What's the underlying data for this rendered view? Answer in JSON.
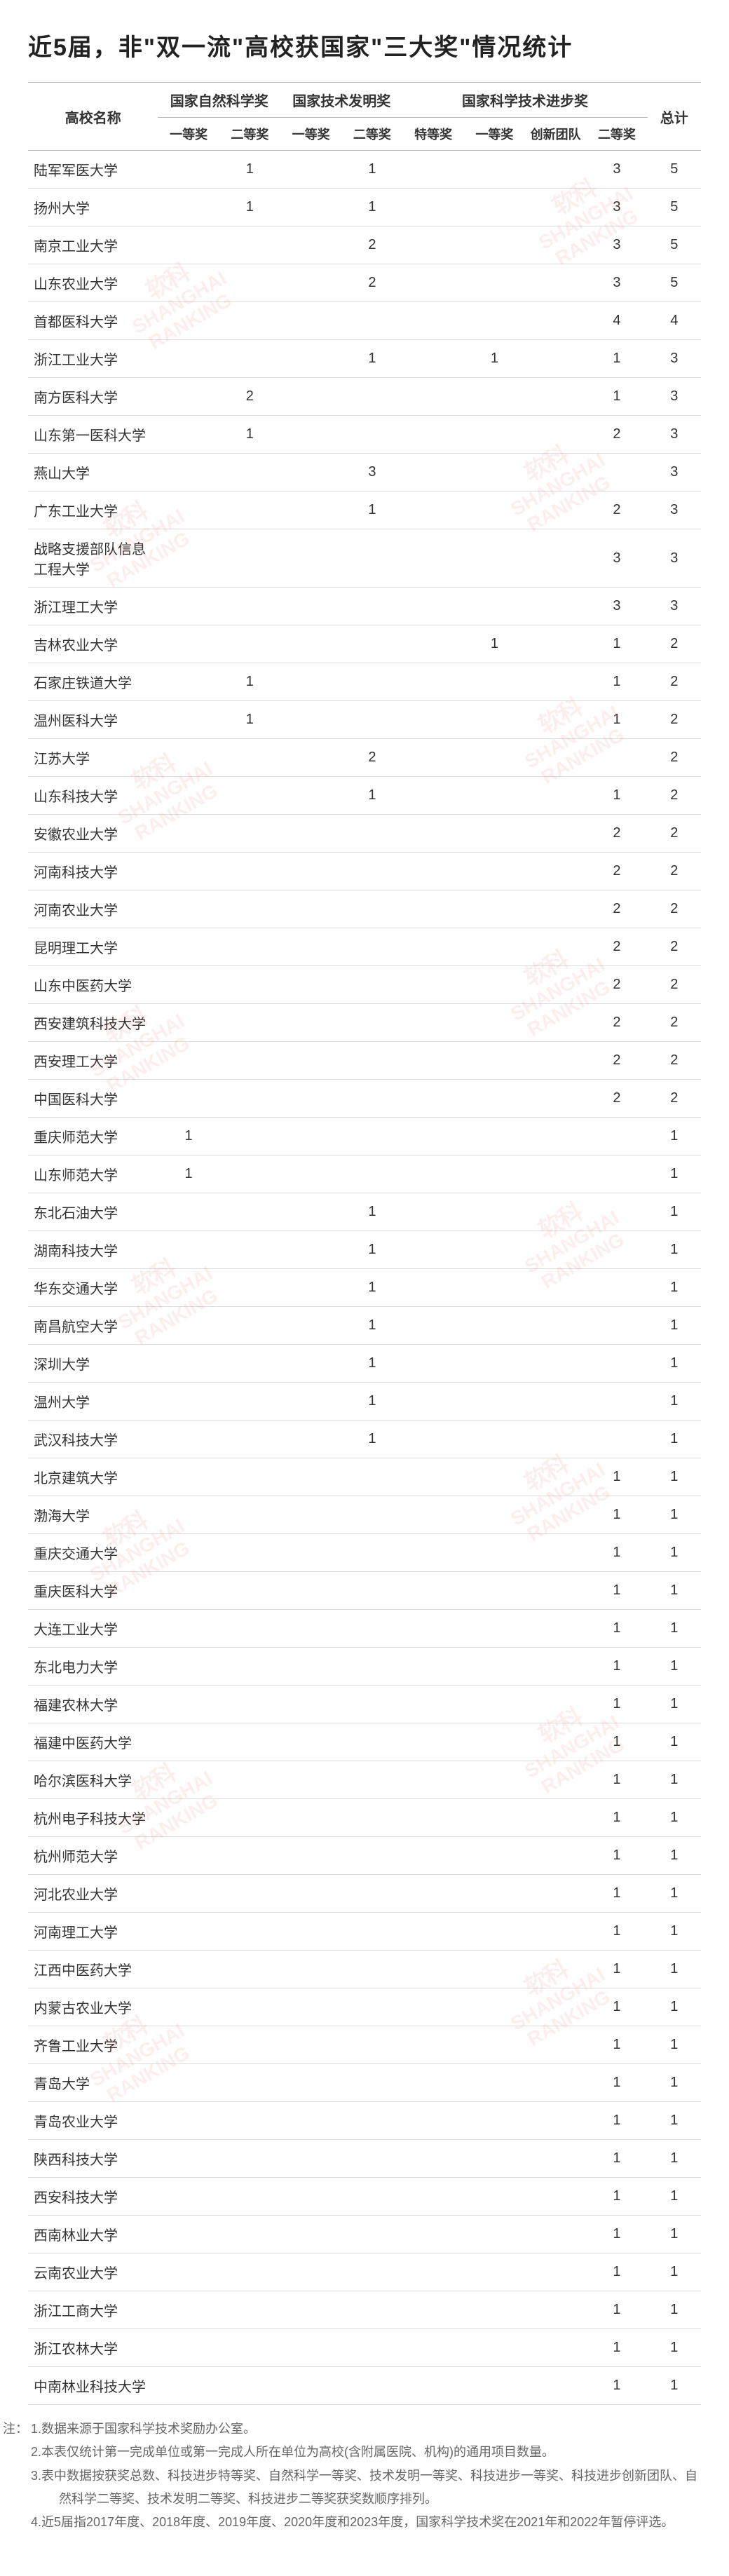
{
  "title": "近5届，非\"双一流\"高校获国家\"三大奖\"情况统计",
  "headers": {
    "university": "高校名称",
    "group1": "国家自然科学奖",
    "group2": "国家技术发明奖",
    "group3": "国家科学技术进步奖",
    "total": "总计",
    "sub": {
      "g1_1": "一等奖",
      "g1_2": "二等奖",
      "g2_1": "一等奖",
      "g2_2": "二等奖",
      "g3_s": "特等奖",
      "g3_1": "一等奖",
      "g3_t": "创新团队",
      "g3_2": "二等奖"
    }
  },
  "style": {
    "header_bg": "#ffffff",
    "border_color": "#bbbbbb",
    "row_border_color": "#dddddd",
    "text_color": "#333333",
    "title_color": "#222222",
    "footnote_color": "#666666",
    "watermark_color": "#ef3a3a",
    "watermark_opacity": 0.08,
    "font_family": "Microsoft YaHei"
  },
  "rows": [
    {
      "uni": "陆军军医大学",
      "c": [
        "",
        "1",
        "",
        "1",
        "",
        "",
        "",
        "3",
        "5"
      ]
    },
    {
      "uni": "扬州大学",
      "c": [
        "",
        "1",
        "",
        "1",
        "",
        "",
        "",
        "3",
        "5"
      ]
    },
    {
      "uni": "南京工业大学",
      "c": [
        "",
        "",
        "",
        "2",
        "",
        "",
        "",
        "3",
        "5"
      ]
    },
    {
      "uni": "山东农业大学",
      "c": [
        "",
        "",
        "",
        "2",
        "",
        "",
        "",
        "3",
        "5"
      ]
    },
    {
      "uni": "首都医科大学",
      "c": [
        "",
        "",
        "",
        "",
        "",
        "",
        "",
        "4",
        "4"
      ]
    },
    {
      "uni": "浙江工业大学",
      "c": [
        "",
        "",
        "",
        "1",
        "",
        "1",
        "",
        "1",
        "3"
      ]
    },
    {
      "uni": "南方医科大学",
      "c": [
        "",
        "2",
        "",
        "",
        "",
        "",
        "",
        "1",
        "3"
      ]
    },
    {
      "uni": "山东第一医科大学",
      "c": [
        "",
        "1",
        "",
        "",
        "",
        "",
        "",
        "2",
        "3"
      ]
    },
    {
      "uni": "燕山大学",
      "c": [
        "",
        "",
        "",
        "3",
        "",
        "",
        "",
        "",
        "3"
      ]
    },
    {
      "uni": "广东工业大学",
      "c": [
        "",
        "",
        "",
        "1",
        "",
        "",
        "",
        "2",
        "3"
      ]
    },
    {
      "uni": "战略支援部队信息工程大学",
      "c": [
        "",
        "",
        "",
        "",
        "",
        "",
        "",
        "3",
        "3"
      ]
    },
    {
      "uni": "浙江理工大学",
      "c": [
        "",
        "",
        "",
        "",
        "",
        "",
        "",
        "3",
        "3"
      ]
    },
    {
      "uni": "吉林农业大学",
      "c": [
        "",
        "",
        "",
        "",
        "",
        "1",
        "",
        "1",
        "2"
      ]
    },
    {
      "uni": "石家庄铁道大学",
      "c": [
        "",
        "1",
        "",
        "",
        "",
        "",
        "",
        "1",
        "2"
      ]
    },
    {
      "uni": "温州医科大学",
      "c": [
        "",
        "1",
        "",
        "",
        "",
        "",
        "",
        "1",
        "2"
      ]
    },
    {
      "uni": "江苏大学",
      "c": [
        "",
        "",
        "",
        "2",
        "",
        "",
        "",
        "",
        "2"
      ]
    },
    {
      "uni": "山东科技大学",
      "c": [
        "",
        "",
        "",
        "1",
        "",
        "",
        "",
        "1",
        "2"
      ]
    },
    {
      "uni": "安徽农业大学",
      "c": [
        "",
        "",
        "",
        "",
        "",
        "",
        "",
        "2",
        "2"
      ]
    },
    {
      "uni": "河南科技大学",
      "c": [
        "",
        "",
        "",
        "",
        "",
        "",
        "",
        "2",
        "2"
      ]
    },
    {
      "uni": "河南农业大学",
      "c": [
        "",
        "",
        "",
        "",
        "",
        "",
        "",
        "2",
        "2"
      ]
    },
    {
      "uni": "昆明理工大学",
      "c": [
        "",
        "",
        "",
        "",
        "",
        "",
        "",
        "2",
        "2"
      ]
    },
    {
      "uni": "山东中医药大学",
      "c": [
        "",
        "",
        "",
        "",
        "",
        "",
        "",
        "2",
        "2"
      ]
    },
    {
      "uni": "西安建筑科技大学",
      "c": [
        "",
        "",
        "",
        "",
        "",
        "",
        "",
        "2",
        "2"
      ]
    },
    {
      "uni": "西安理工大学",
      "c": [
        "",
        "",
        "",
        "",
        "",
        "",
        "",
        "2",
        "2"
      ]
    },
    {
      "uni": "中国医科大学",
      "c": [
        "",
        "",
        "",
        "",
        "",
        "",
        "",
        "2",
        "2"
      ]
    },
    {
      "uni": "重庆师范大学",
      "c": [
        "1",
        "",
        "",
        "",
        "",
        "",
        "",
        "",
        "1"
      ]
    },
    {
      "uni": "山东师范大学",
      "c": [
        "1",
        "",
        "",
        "",
        "",
        "",
        "",
        "",
        "1"
      ]
    },
    {
      "uni": "东北石油大学",
      "c": [
        "",
        "",
        "",
        "1",
        "",
        "",
        "",
        "",
        "1"
      ]
    },
    {
      "uni": "湖南科技大学",
      "c": [
        "",
        "",
        "",
        "1",
        "",
        "",
        "",
        "",
        "1"
      ]
    },
    {
      "uni": "华东交通大学",
      "c": [
        "",
        "",
        "",
        "1",
        "",
        "",
        "",
        "",
        "1"
      ]
    },
    {
      "uni": "南昌航空大学",
      "c": [
        "",
        "",
        "",
        "1",
        "",
        "",
        "",
        "",
        "1"
      ]
    },
    {
      "uni": "深圳大学",
      "c": [
        "",
        "",
        "",
        "1",
        "",
        "",
        "",
        "",
        "1"
      ]
    },
    {
      "uni": "温州大学",
      "c": [
        "",
        "",
        "",
        "1",
        "",
        "",
        "",
        "",
        "1"
      ]
    },
    {
      "uni": "武汉科技大学",
      "c": [
        "",
        "",
        "",
        "1",
        "",
        "",
        "",
        "",
        "1"
      ]
    },
    {
      "uni": "北京建筑大学",
      "c": [
        "",
        "",
        "",
        "",
        "",
        "",
        "",
        "1",
        "1"
      ]
    },
    {
      "uni": "渤海大学",
      "c": [
        "",
        "",
        "",
        "",
        "",
        "",
        "",
        "1",
        "1"
      ]
    },
    {
      "uni": "重庆交通大学",
      "c": [
        "",
        "",
        "",
        "",
        "",
        "",
        "",
        "1",
        "1"
      ]
    },
    {
      "uni": "重庆医科大学",
      "c": [
        "",
        "",
        "",
        "",
        "",
        "",
        "",
        "1",
        "1"
      ]
    },
    {
      "uni": "大连工业大学",
      "c": [
        "",
        "",
        "",
        "",
        "",
        "",
        "",
        "1",
        "1"
      ]
    },
    {
      "uni": "东北电力大学",
      "c": [
        "",
        "",
        "",
        "",
        "",
        "",
        "",
        "1",
        "1"
      ]
    },
    {
      "uni": "福建农林大学",
      "c": [
        "",
        "",
        "",
        "",
        "",
        "",
        "",
        "1",
        "1"
      ]
    },
    {
      "uni": "福建中医药大学",
      "c": [
        "",
        "",
        "",
        "",
        "",
        "",
        "",
        "1",
        "1"
      ]
    },
    {
      "uni": "哈尔滨医科大学",
      "c": [
        "",
        "",
        "",
        "",
        "",
        "",
        "",
        "1",
        "1"
      ]
    },
    {
      "uni": "杭州电子科技大学",
      "c": [
        "",
        "",
        "",
        "",
        "",
        "",
        "",
        "1",
        "1"
      ]
    },
    {
      "uni": "杭州师范大学",
      "c": [
        "",
        "",
        "",
        "",
        "",
        "",
        "",
        "1",
        "1"
      ]
    },
    {
      "uni": "河北农业大学",
      "c": [
        "",
        "",
        "",
        "",
        "",
        "",
        "",
        "1",
        "1"
      ]
    },
    {
      "uni": "河南理工大学",
      "c": [
        "",
        "",
        "",
        "",
        "",
        "",
        "",
        "1",
        "1"
      ]
    },
    {
      "uni": "江西中医药大学",
      "c": [
        "",
        "",
        "",
        "",
        "",
        "",
        "",
        "1",
        "1"
      ]
    },
    {
      "uni": "内蒙古农业大学",
      "c": [
        "",
        "",
        "",
        "",
        "",
        "",
        "",
        "1",
        "1"
      ]
    },
    {
      "uni": "齐鲁工业大学",
      "c": [
        "",
        "",
        "",
        "",
        "",
        "",
        "",
        "1",
        "1"
      ]
    },
    {
      "uni": "青岛大学",
      "c": [
        "",
        "",
        "",
        "",
        "",
        "",
        "",
        "1",
        "1"
      ]
    },
    {
      "uni": "青岛农业大学",
      "c": [
        "",
        "",
        "",
        "",
        "",
        "",
        "",
        "1",
        "1"
      ]
    },
    {
      "uni": "陕西科技大学",
      "c": [
        "",
        "",
        "",
        "",
        "",
        "",
        "",
        "1",
        "1"
      ]
    },
    {
      "uni": "西安科技大学",
      "c": [
        "",
        "",
        "",
        "",
        "",
        "",
        "",
        "1",
        "1"
      ]
    },
    {
      "uni": "西南林业大学",
      "c": [
        "",
        "",
        "",
        "",
        "",
        "",
        "",
        "1",
        "1"
      ]
    },
    {
      "uni": "云南农业大学",
      "c": [
        "",
        "",
        "",
        "",
        "",
        "",
        "",
        "1",
        "1"
      ]
    },
    {
      "uni": "浙江工商大学",
      "c": [
        "",
        "",
        "",
        "",
        "",
        "",
        "",
        "1",
        "1"
      ]
    },
    {
      "uni": "浙江农林大学",
      "c": [
        "",
        "",
        "",
        "",
        "",
        "",
        "",
        "1",
        "1"
      ]
    },
    {
      "uni": "中南林业科技大学",
      "c": [
        "",
        "",
        "",
        "",
        "",
        "",
        "",
        "1",
        "1"
      ]
    }
  ],
  "footnotes_label": "注：",
  "footnotes": [
    "1.数据来源于国家科学技术奖励办公室。",
    "2.本表仅统计第一完成单位或第一完成人所在单位为高校(含附属医院、机构)的通用项目数量。",
    "3.表中数据按获奖总数、科技进步特等奖、自然科学一等奖、技术发明一等奖、科技进步一等奖、科技进步创新团队、自然科学二等奖、技术发明二等奖、科技进步二等奖获奖数顺序排列。",
    "4.近5届指2017年度、2018年度、2019年度、2020年度和2023年度，国家科学技术奖在2021年和2022年暂停评选。"
  ],
  "watermark": {
    "line1": "软科",
    "line2": "SHANGHAI",
    "line3": "RANKING"
  }
}
